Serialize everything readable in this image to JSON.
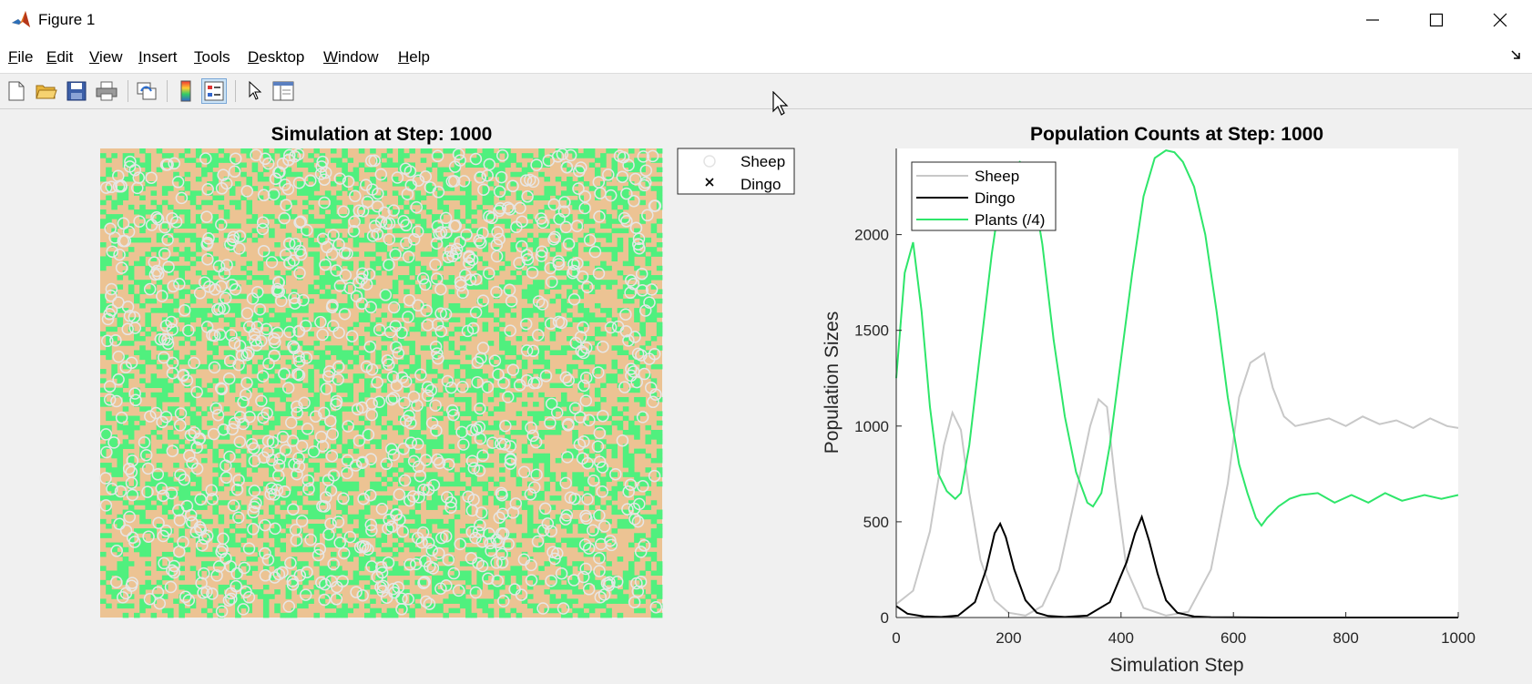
{
  "window": {
    "title": "Figure 1",
    "icon": "matlab-icon",
    "controls": [
      "minimize-icon",
      "maximize-icon",
      "close-icon"
    ]
  },
  "menu": [
    {
      "pre": "",
      "u": "F",
      "post": "ile"
    },
    {
      "pre": "",
      "u": "E",
      "post": "dit"
    },
    {
      "pre": "",
      "u": "V",
      "post": "iew"
    },
    {
      "pre": "",
      "u": "I",
      "post": "nsert"
    },
    {
      "pre": "",
      "u": "T",
      "post": "ools"
    },
    {
      "pre": "",
      "u": "D",
      "post": "esktop"
    },
    {
      "pre": "",
      "u": "W",
      "post": "indow"
    },
    {
      "pre": "",
      "u": "H",
      "post": "elp"
    }
  ],
  "toolbar": [
    "new-figure-icon",
    "open-file-icon",
    "save-icon",
    "print-icon",
    "link-plot-icon",
    "colorbar-icon",
    "legend-icon",
    "edit-plot-icon",
    "property-inspector-icon"
  ],
  "colors": {
    "plant": "#50f07e",
    "soil": "#ecc393",
    "sheep": "#c8c8c8",
    "dingo": "#000000",
    "plants_line": "#2ee66a"
  },
  "sim_panel": {
    "title": "Simulation at Step: 1000",
    "legend": [
      {
        "marker": "circle",
        "label": "Sheep"
      },
      {
        "marker": "cross",
        "label": "Dingo"
      }
    ]
  },
  "chart_data": {
    "type": "line",
    "title": "Population Counts at Step: 1000",
    "xlabel": "Simulation Step",
    "ylabel": "Population Sizes",
    "xlim": [
      0,
      1000
    ],
    "ylim": [
      0,
      2450
    ],
    "xticks": [
      0,
      200,
      400,
      600,
      800,
      1000
    ],
    "yticks": [
      0,
      500,
      1000,
      1500,
      2000
    ],
    "legend_position": "top-left",
    "grid": false,
    "series": [
      {
        "name": "Sheep",
        "color": "#c8c8c8",
        "x": [
          0,
          30,
          60,
          85,
          100,
          115,
          130,
          150,
          175,
          200,
          230,
          260,
          290,
          320,
          345,
          360,
          375,
          390,
          410,
          440,
          480,
          520,
          560,
          590,
          610,
          630,
          655,
          670,
          690,
          710,
          740,
          770,
          800,
          830,
          860,
          890,
          920,
          950,
          980,
          1000
        ],
        "y": [
          70,
          140,
          450,
          900,
          1070,
          980,
          650,
          300,
          90,
          25,
          10,
          60,
          250,
          650,
          1000,
          1140,
          1100,
          700,
          250,
          50,
          10,
          30,
          250,
          700,
          1150,
          1330,
          1380,
          1200,
          1050,
          1000,
          1020,
          1040,
          1000,
          1050,
          1010,
          1030,
          990,
          1040,
          1000,
          990
        ]
      },
      {
        "name": "Dingo",
        "color": "#000000",
        "x": [
          0,
          20,
          50,
          80,
          110,
          140,
          160,
          175,
          185,
          195,
          210,
          230,
          250,
          270,
          300,
          340,
          380,
          410,
          425,
          437,
          450,
          465,
          480,
          500,
          530,
          560,
          600,
          700,
          800,
          900,
          1000
        ],
        "y": [
          60,
          20,
          5,
          3,
          10,
          80,
          250,
          440,
          490,
          420,
          250,
          90,
          25,
          8,
          3,
          10,
          80,
          290,
          440,
          525,
          400,
          230,
          90,
          25,
          5,
          2,
          1,
          0,
          0,
          0,
          0
        ]
      },
      {
        "name": "Plants (/4)",
        "color": "#2ee66a",
        "x": [
          0,
          15,
          30,
          45,
          60,
          75,
          90,
          105,
          115,
          130,
          150,
          170,
          185,
          200,
          220,
          240,
          260,
          280,
          300,
          320,
          340,
          350,
          365,
          380,
          400,
          420,
          440,
          460,
          480,
          495,
          510,
          530,
          550,
          570,
          590,
          610,
          625,
          640,
          650,
          660,
          680,
          700,
          720,
          750,
          780,
          810,
          840,
          870,
          900,
          940,
          970,
          1000
        ],
        "y": [
          1250,
          1800,
          1960,
          1600,
          1100,
          750,
          660,
          620,
          650,
          900,
          1400,
          1900,
          2200,
          2330,
          2380,
          2300,
          1950,
          1450,
          1050,
          760,
          600,
          580,
          650,
          900,
          1350,
          1800,
          2200,
          2400,
          2440,
          2430,
          2380,
          2250,
          2000,
          1600,
          1150,
          800,
          650,
          520,
          480,
          520,
          580,
          620,
          640,
          650,
          600,
          640,
          600,
          650,
          610,
          640,
          620,
          640
        ]
      }
    ]
  }
}
